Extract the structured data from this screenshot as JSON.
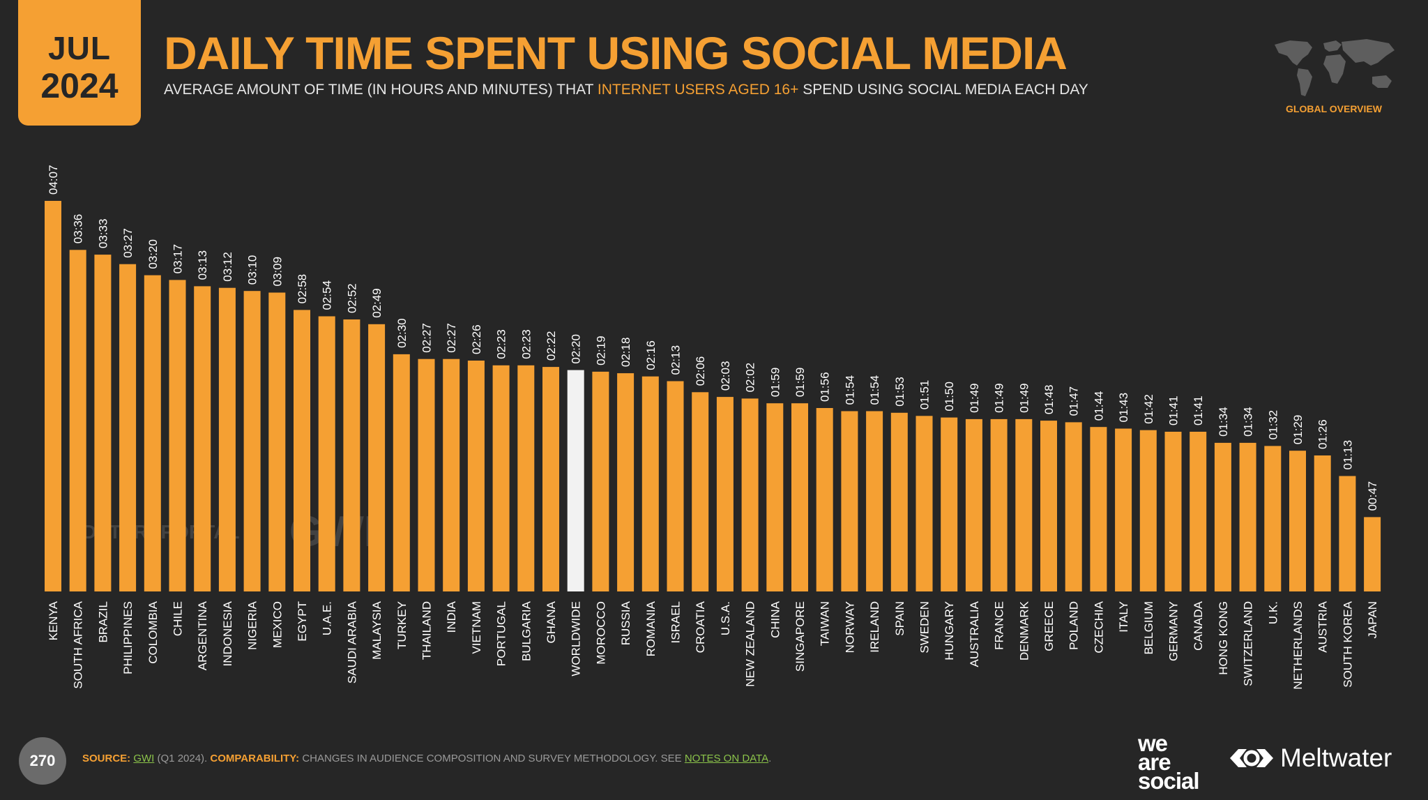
{
  "badge": {
    "month": "JUL",
    "year": "2024"
  },
  "header": {
    "title": "DAILY TIME SPENT USING SOCIAL MEDIA",
    "subtitle_pre": "AVERAGE AMOUNT OF TIME (IN HOURS AND MINUTES) THAT",
    "subtitle_highlight": "INTERNET USERS AGED 16+",
    "subtitle_post": "SPEND USING SOCIAL MEDIA EACH DAY"
  },
  "overview_label": "GLOBAL OVERVIEW",
  "watermarks": {
    "datareportal": "DATAREPORTAL",
    "gwi": "GWI."
  },
  "footer": {
    "page_number": "270",
    "source_label": "SOURCE:",
    "source_name": "GWI",
    "source_period": "(Q1 2024).",
    "comparability_label": "COMPARABILITY:",
    "comparability_text": "CHANGES IN AUDIENCE COMPOSITION AND SURVEY METHODOLOGY. SEE",
    "notes_link": "NOTES ON DATA",
    "notes_end": "."
  },
  "logos": {
    "we_are_social": [
      "we",
      "are",
      "social"
    ],
    "meltwater": "Meltwater"
  },
  "colors": {
    "accent": "#f5a033",
    "highlight_bar": "#f2f2f2",
    "background": "#262626",
    "link": "#8bc34a"
  },
  "icons": {
    "globe": "world-map-icon",
    "meltwater": "meltwater-logo-icon"
  },
  "chart_data": {
    "type": "bar",
    "unit": "hours and minutes (HH:MM)",
    "highlight": "WORLDWIDE",
    "categories": [
      "KENYA",
      "SOUTH AFRICA",
      "BRAZIL",
      "PHILIPPINES",
      "COLOMBIA",
      "CHILE",
      "ARGENTINA",
      "INDONESIA",
      "NIGERIA",
      "MEXICO",
      "EGYPT",
      "U.A.E.",
      "SAUDI ARABIA",
      "MALAYSIA",
      "TURKEY",
      "THAILAND",
      "INDIA",
      "VIETNAM",
      "PORTUGAL",
      "BULGARIA",
      "GHANA",
      "WORLDWIDE",
      "MOROCCO",
      "RUSSIA",
      "ROMANIA",
      "ISRAEL",
      "CROATIA",
      "U.S.A.",
      "NEW ZEALAND",
      "CHINA",
      "SINGAPORE",
      "TAIWAN",
      "NORWAY",
      "IRELAND",
      "SPAIN",
      "SWEDEN",
      "HUNGARY",
      "AUSTRALIA",
      "FRANCE",
      "DENMARK",
      "GREECE",
      "POLAND",
      "CZECHIA",
      "ITALY",
      "BELGIUM",
      "GERMANY",
      "CANADA",
      "HONG KONG",
      "SWITZERLAND",
      "U.K.",
      "NETHERLANDS",
      "AUSTRIA",
      "SOUTH KOREA",
      "JAPAN"
    ],
    "labels": [
      "04:07",
      "03:36",
      "03:33",
      "03:27",
      "03:20",
      "03:17",
      "03:13",
      "03:12",
      "03:10",
      "03:09",
      "02:58",
      "02:54",
      "02:52",
      "02:49",
      "02:30",
      "02:27",
      "02:27",
      "02:26",
      "02:23",
      "02:23",
      "02:22",
      "02:20",
      "02:19",
      "02:18",
      "02:16",
      "02:13",
      "02:06",
      "02:03",
      "02:02",
      "01:59",
      "01:59",
      "01:56",
      "01:54",
      "01:54",
      "01:53",
      "01:51",
      "01:50",
      "01:49",
      "01:49",
      "01:49",
      "01:48",
      "01:47",
      "01:44",
      "01:43",
      "01:42",
      "01:41",
      "01:41",
      "01:34",
      "01:34",
      "01:32",
      "01:29",
      "01:26",
      "01:13",
      "00:47"
    ],
    "values": [
      247,
      216,
      213,
      207,
      200,
      197,
      193,
      192,
      190,
      189,
      178,
      174,
      172,
      169,
      150,
      147,
      147,
      146,
      143,
      143,
      142,
      140,
      139,
      138,
      136,
      133,
      126,
      123,
      122,
      119,
      119,
      116,
      114,
      114,
      113,
      111,
      110,
      109,
      109,
      109,
      108,
      107,
      104,
      103,
      102,
      101,
      101,
      94,
      94,
      92,
      89,
      86,
      73,
      47
    ]
  }
}
